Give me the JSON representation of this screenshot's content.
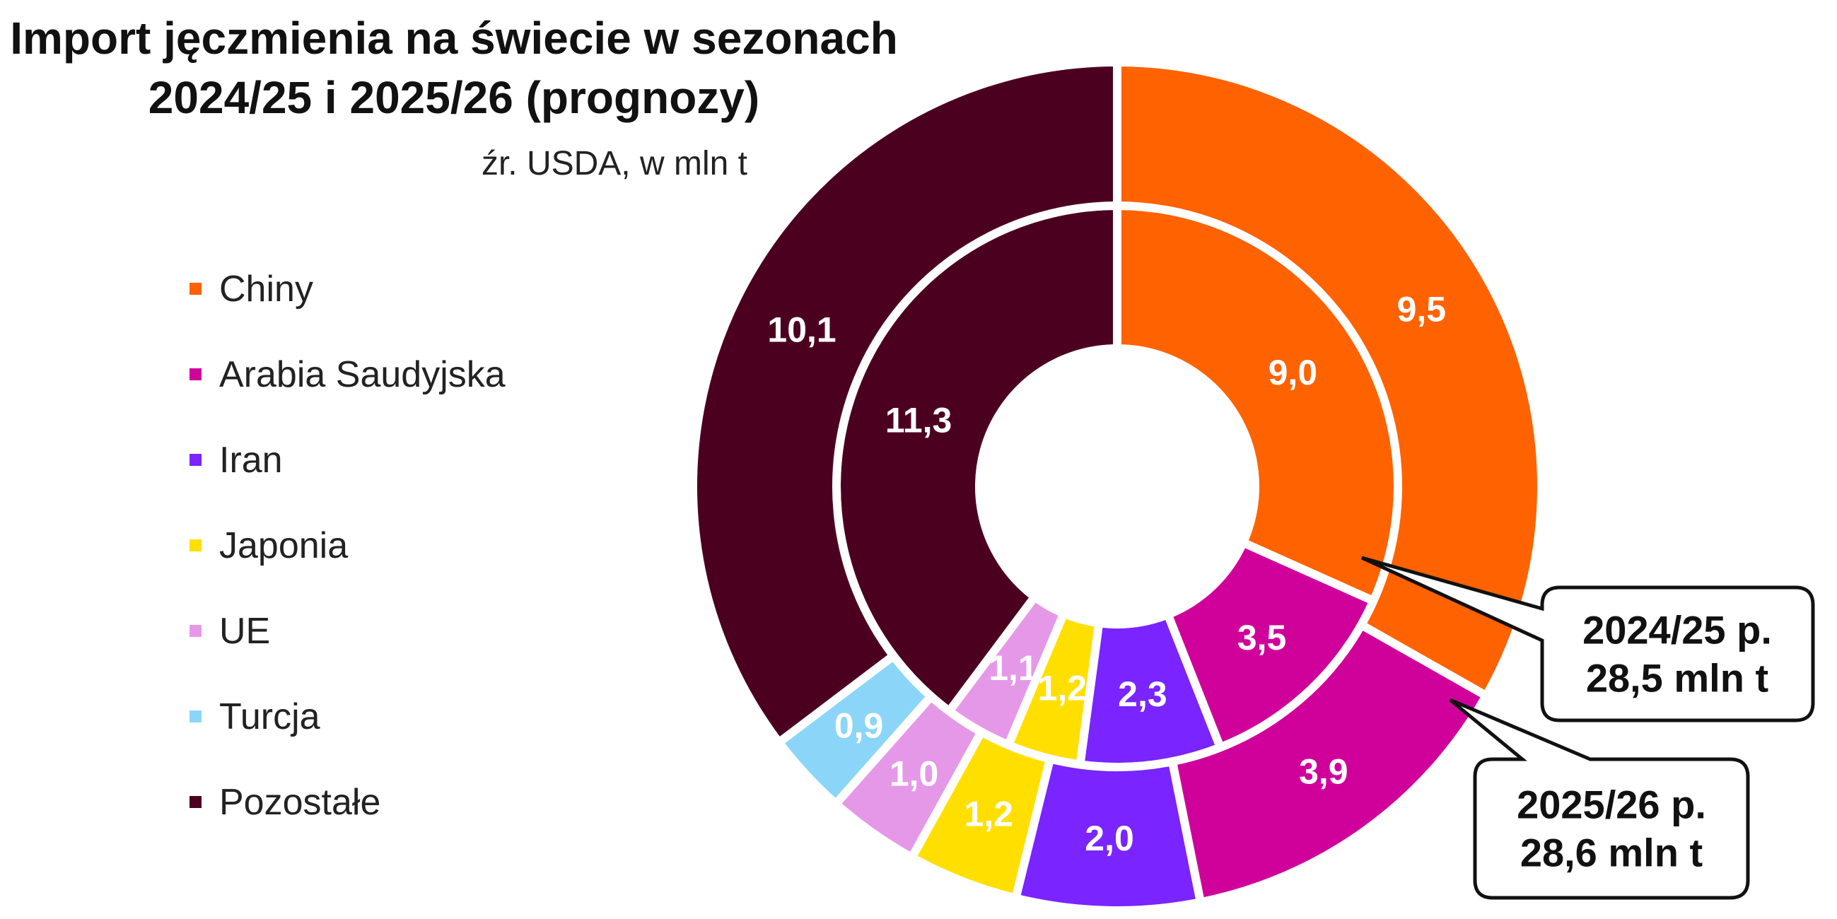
{
  "chart_data": {
    "type": "pie",
    "title": [
      "Import jęczmienia na świecie w sezonach",
      "2024/25 i 2025/26 (prognozy)"
    ],
    "subtitle": "źr. USDA, w mln t",
    "legend_position": "left",
    "categories": [
      "Chiny",
      "Arabia Saudyjska",
      "Iran",
      "Japonia",
      "UE",
      "Turcja",
      "Pozostałe"
    ],
    "colors": [
      "#FF6200",
      "#D0009B",
      "#7A24FF",
      "#FFDF00",
      "#E598E8",
      "#8BD6F8",
      "#4C0020"
    ],
    "series": [
      {
        "name": "2024/25 p.",
        "total_label": "28,5 mln t",
        "values": [
          9.0,
          3.5,
          2.3,
          1.2,
          1.1,
          null,
          11.3
        ],
        "labels": [
          "9,0",
          "3,5",
          "2,3",
          "1,2",
          "1,1",
          null,
          "11,3"
        ]
      },
      {
        "name": "2025/26 p.",
        "total_label": "28,6 mln t",
        "values": [
          9.5,
          3.9,
          2.0,
          1.2,
          1.0,
          0.9,
          10.1
        ],
        "labels": [
          "9,5",
          "3,9",
          "2,0",
          "1,2",
          "1,0",
          "0,9",
          "10,1"
        ]
      }
    ]
  }
}
